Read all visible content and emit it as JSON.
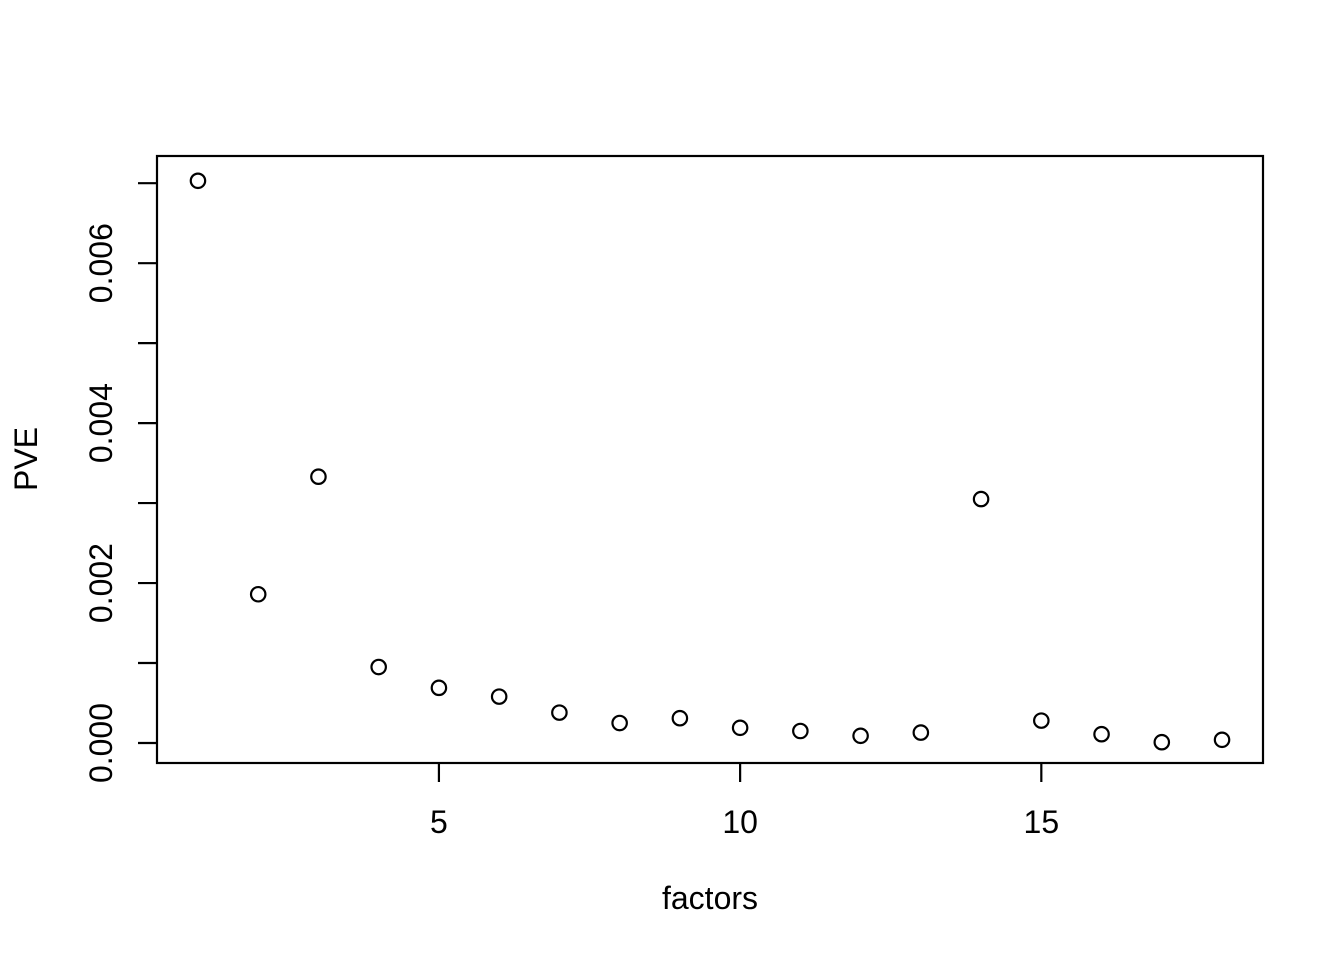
{
  "chart_data": {
    "type": "scatter",
    "title": "",
    "xlabel": "factors",
    "ylabel": "PVE",
    "x": [
      1,
      2,
      3,
      4,
      5,
      6,
      7,
      8,
      9,
      10,
      11,
      12,
      13,
      14,
      15,
      16,
      17,
      18
    ],
    "values": [
      0.00703,
      0.00186,
      0.00333,
      0.00095,
      0.00069,
      0.00058,
      0.00038,
      0.00025,
      0.00031,
      0.00019,
      0.00015,
      9e-05,
      0.00013,
      0.00305,
      0.00028,
      0.00011,
      1e-05,
      4e-05
    ],
    "series_name": "PVE",
    "xlim": [
      0.32,
      18.68
    ],
    "ylim": [
      -0.00025,
      0.00734
    ],
    "x_ticks": [
      {
        "value": 5,
        "label": "5"
      },
      {
        "value": 10,
        "label": "10"
      },
      {
        "value": 15,
        "label": "15"
      }
    ],
    "y_ticks": [
      {
        "value": 0.0,
        "label": "0.000"
      },
      {
        "value": 0.001,
        "label": ""
      },
      {
        "value": 0.002,
        "label": "0.002"
      },
      {
        "value": 0.003,
        "label": ""
      },
      {
        "value": 0.004,
        "label": "0.004"
      },
      {
        "value": 0.005,
        "label": ""
      },
      {
        "value": 0.006,
        "label": "0.006"
      },
      {
        "value": 0.007,
        "label": ""
      }
    ],
    "grid": false,
    "legend": "none",
    "marker": "open-circle",
    "colors": {
      "points": "#000000",
      "axis": "#000000",
      "text": "#000000",
      "background": "#ffffff"
    }
  }
}
